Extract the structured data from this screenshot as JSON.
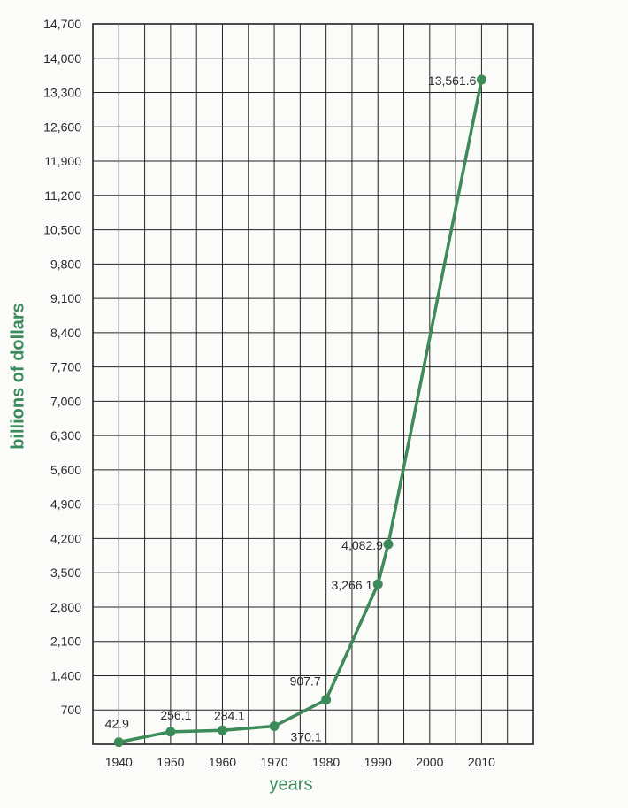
{
  "chart_data": {
    "type": "line",
    "title": "",
    "xlabel": "years",
    "ylabel": "billions of dollars",
    "ylim": [
      0,
      14700
    ],
    "y_ticks": [
      "700",
      "1,400",
      "2,100",
      "2,800",
      "3,500",
      "4,200",
      "4,900",
      "5,600",
      "6,300",
      "7,000",
      "7,700",
      "8,400",
      "9,100",
      "9,800",
      "10,500",
      "11,200",
      "11,900",
      "12,600",
      "13,300",
      "14,000",
      "14,700"
    ],
    "x_ticks": [
      "1940",
      "1950",
      "1960",
      "1970",
      "1980",
      "1990",
      "2000",
      "2010"
    ],
    "grid": true,
    "colors": {
      "line": "#3d8a5a",
      "grid": "#222222",
      "axis_label": "#3a8a5c",
      "text": "#2a2a2a"
    },
    "series": [
      {
        "x": [
          1940,
          1950,
          1960,
          1970,
          1980,
          1990,
          1992,
          2010
        ],
        "values": [
          42.9,
          256.1,
          284.1,
          370.1,
          907.7,
          3266.1,
          4082.9,
          13561.6
        ],
        "labels": [
          "42.9",
          "256.1",
          "284.1",
          "370.1",
          "907.7",
          "3,266.1",
          "4,082.9",
          "13,561.6"
        ]
      }
    ]
  }
}
